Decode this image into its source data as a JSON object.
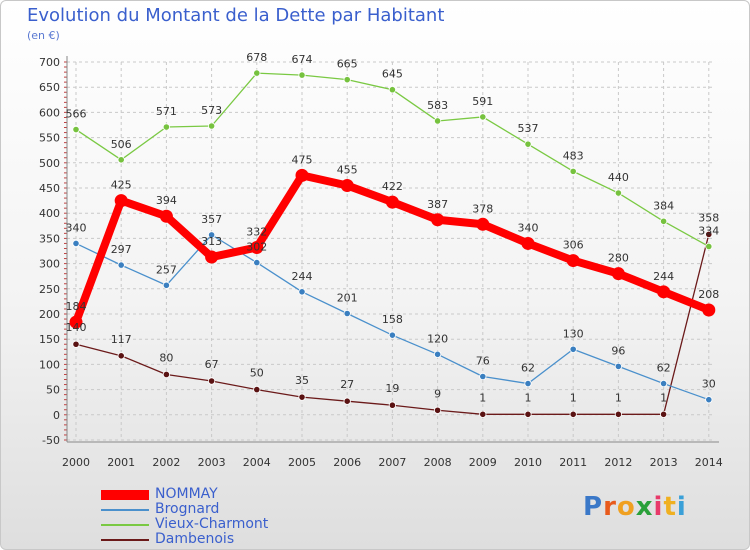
{
  "title": "Evolution du Montant de la Dette par Habitant",
  "unit": "(en €)",
  "brand": "Proxiti",
  "chart_data": {
    "type": "line",
    "x": [
      "2000",
      "2001",
      "2002",
      "2003",
      "2004",
      "2005",
      "2006",
      "2007",
      "2008",
      "2009",
      "2010",
      "2011",
      "2012",
      "2013",
      "2014"
    ],
    "ylim": [
      -50,
      700
    ],
    "yticks": [
      -50,
      0,
      50,
      100,
      150,
      200,
      250,
      300,
      350,
      400,
      450,
      500,
      550,
      600,
      650,
      700
    ],
    "grid": true,
    "legend_position": "bottom-left",
    "series": [
      {
        "name": "Dambenois",
        "color": "#6b1a1a",
        "values": [
          140,
          117,
          80,
          67,
          50,
          35,
          27,
          19,
          9,
          1,
          1,
          1,
          1,
          1,
          358
        ]
      },
      {
        "name": "Brognard",
        "color": "#4a90cc",
        "values": [
          340,
          297,
          257,
          357,
          302,
          244,
          201,
          158,
          120,
          76,
          62,
          130,
          96,
          62,
          30
        ]
      },
      {
        "name": "Vieux-Charmont",
        "color": "#7ac943",
        "values": [
          566,
          506,
          571,
          573,
          678,
          674,
          665,
          645,
          583,
          591,
          537,
          483,
          440,
          384,
          334
        ]
      },
      {
        "name": "NOMMAY",
        "color": "#ff0000",
        "values": [
          184,
          425,
          394,
          313,
          332,
          475,
          455,
          422,
          387,
          378,
          340,
          306,
          280,
          244,
          208
        ]
      }
    ],
    "legend_order": [
      "NOMMAY",
      "Brognard",
      "Vieux-Charmont",
      "Dambenois"
    ]
  }
}
